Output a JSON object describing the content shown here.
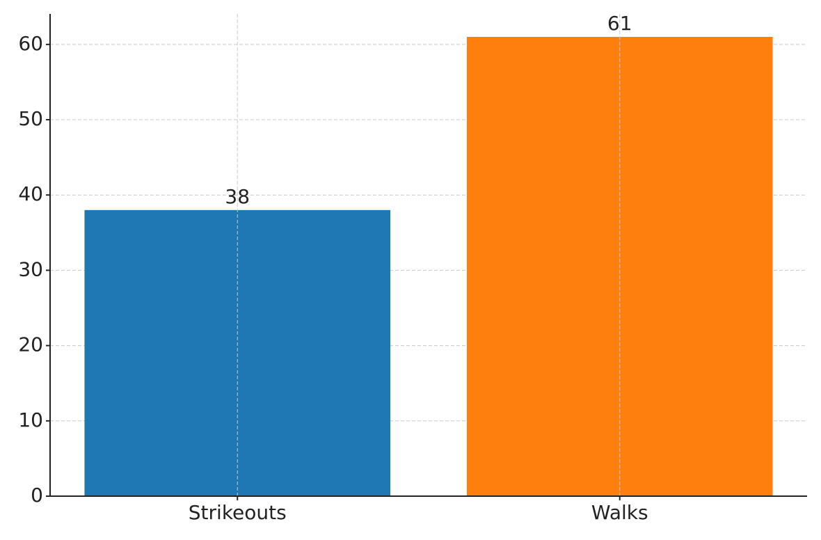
{
  "chart_data": {
    "type": "bar",
    "categories": [
      "Strikeouts",
      "Walks"
    ],
    "values": [
      38,
      61
    ],
    "colors": [
      "#1f77b4",
      "#ff7f0e"
    ],
    "ylim": [
      0,
      64.05
    ],
    "yticks": [
      0,
      10,
      20,
      30,
      40,
      50,
      60
    ],
    "grid": true
  }
}
